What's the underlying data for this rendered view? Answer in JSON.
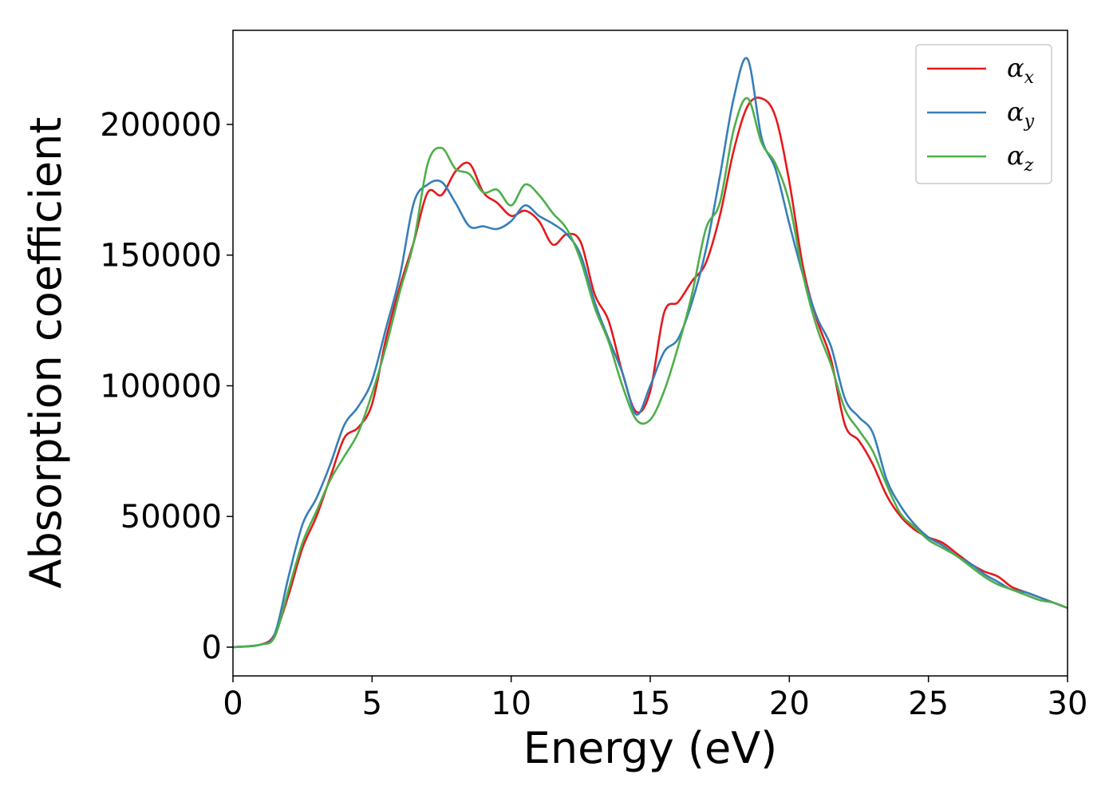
{
  "chart_data": {
    "type": "line",
    "title": "",
    "xlabel": "Energy (eV)",
    "ylabel": "Absorption coefficient",
    "xlim": [
      0,
      30
    ],
    "ylim": [
      -11000,
      236000
    ],
    "xticks": [
      0,
      5,
      10,
      15,
      20,
      25,
      30
    ],
    "xtick_labels": [
      "0",
      "5",
      "10",
      "15",
      "20",
      "25",
      "30"
    ],
    "yticks": [
      0,
      50000,
      100000,
      150000,
      200000
    ],
    "ytick_labels": [
      "0",
      "50000",
      "100000",
      "150000",
      "200000"
    ],
    "grid": false,
    "legend_position": "top-right",
    "series": [
      {
        "name": "α",
        "subscript": "x",
        "color": "#e41a1c",
        "x": [
          0,
          1,
          1.5,
          2,
          2.5,
          3,
          3.5,
          4,
          4.5,
          5,
          5.5,
          6,
          6.5,
          7,
          7.5,
          8,
          8.5,
          9,
          9.5,
          10,
          10.5,
          11,
          11.5,
          12,
          12.5,
          13,
          13.5,
          14,
          14.5,
          15,
          15.5,
          16,
          16.5,
          17,
          17.5,
          18,
          18.5,
          19,
          19.5,
          20,
          20.5,
          21,
          21.5,
          22,
          22.5,
          23,
          23.5,
          24,
          24.5,
          25,
          25.5,
          26,
          26.5,
          27,
          27.5,
          28,
          28.5,
          29,
          29.5,
          30
        ],
        "y": [
          0,
          1000,
          5000,
          20000,
          38000,
          50000,
          65000,
          80000,
          84000,
          93000,
          118000,
          138000,
          155000,
          174000,
          173000,
          182000,
          185000,
          174000,
          170000,
          165000,
          167000,
          163000,
          154000,
          158000,
          155000,
          135000,
          125000,
          105000,
          90000,
          98000,
          128000,
          132000,
          140000,
          147000,
          165000,
          190000,
          207000,
          210000,
          203000,
          178000,
          145000,
          125000,
          110000,
          85000,
          79000,
          70000,
          58000,
          50000,
          45000,
          42000,
          40000,
          36000,
          32000,
          29000,
          27000,
          23000,
          21000,
          19000,
          17000,
          15000
        ]
      },
      {
        "name": "α",
        "subscript": "y",
        "color": "#377eb8",
        "x": [
          0,
          1,
          1.5,
          2,
          2.5,
          3,
          3.5,
          4,
          4.5,
          5,
          5.5,
          6,
          6.5,
          7,
          7.5,
          8,
          8.5,
          9,
          9.5,
          10,
          10.5,
          11,
          11.5,
          12,
          12.5,
          13,
          13.5,
          14,
          14.5,
          15,
          15.5,
          16,
          16.5,
          17,
          17.5,
          18,
          18.5,
          19,
          19.5,
          20,
          20.5,
          21,
          21.5,
          22,
          22.5,
          23,
          23.5,
          24,
          24.5,
          25,
          25.5,
          26,
          26.5,
          27,
          27.5,
          28,
          28.5,
          29,
          29.5,
          30
        ],
        "y": [
          0,
          1000,
          5000,
          27000,
          47000,
          57000,
          70000,
          85000,
          92000,
          102000,
          122000,
          142000,
          170000,
          177000,
          178000,
          170000,
          161000,
          161000,
          160000,
          163000,
          169000,
          165000,
          162000,
          158000,
          150000,
          132000,
          118000,
          105000,
          89000,
          100000,
          113000,
          118000,
          132000,
          152000,
          180000,
          210000,
          225000,
          195000,
          183000,
          162000,
          142000,
          126000,
          115000,
          95000,
          88000,
          82000,
          64000,
          54000,
          47000,
          42000,
          39000,
          35000,
          32000,
          28000,
          25000,
          22000,
          21000,
          19000,
          17000,
          15000
        ]
      },
      {
        "name": "α",
        "subscript": "z",
        "color": "#4daf4a",
        "x": [
          0,
          1,
          1.5,
          2,
          2.5,
          3,
          3.5,
          4,
          4.5,
          5,
          5.5,
          6,
          6.5,
          7,
          7.5,
          8,
          8.5,
          9,
          9.5,
          10,
          10.5,
          11,
          11.5,
          12,
          12.5,
          13,
          13.5,
          14,
          14.5,
          15,
          15.5,
          16,
          16.5,
          17,
          17.5,
          18,
          18.5,
          19,
          19.5,
          20,
          20.5,
          21,
          21.5,
          22,
          22.5,
          23,
          23.5,
          24,
          24.5,
          25,
          25.5,
          26,
          26.5,
          27,
          27.5,
          28,
          28.5,
          29,
          29.5,
          30
        ],
        "y": [
          0,
          1000,
          4000,
          22000,
          40000,
          52000,
          64000,
          73000,
          82000,
          97000,
          115000,
          136000,
          155000,
          185000,
          191000,
          183000,
          181000,
          174000,
          175000,
          169000,
          177000,
          173000,
          166000,
          160000,
          148000,
          130000,
          117000,
          100000,
          87000,
          87000,
          98000,
          115000,
          135000,
          160000,
          170000,
          198000,
          210000,
          193000,
          185000,
          170000,
          142000,
          122000,
          108000,
          91000,
          83000,
          75000,
          62000,
          51000,
          46000,
          41000,
          38000,
          35000,
          31000,
          27000,
          24000,
          22000,
          20000,
          18000,
          17000,
          15000
        ]
      }
    ]
  }
}
